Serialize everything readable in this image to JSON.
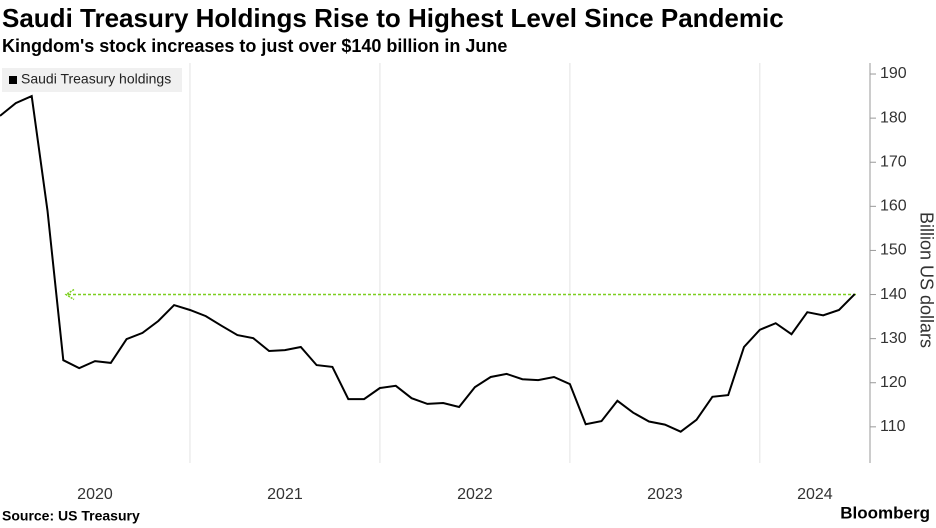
{
  "chart_data": {
    "type": "line",
    "title": "Saudi Treasury Holdings Rise to Highest Level Since Pandemic",
    "subtitle": "Kingdom's stock increases to just over $140 billion in June",
    "source": "Source: US Treasury",
    "brand": "Bloomberg",
    "y_label": "Billion US dollars",
    "categories": [
      "2020",
      null,
      null,
      null,
      null,
      null,
      null,
      null,
      null,
      null,
      null,
      null,
      "2021",
      null,
      null,
      null,
      null,
      null,
      null,
      null,
      null,
      null,
      null,
      null,
      "2022",
      null,
      null,
      null,
      null,
      null,
      null,
      null,
      null,
      null,
      null,
      null,
      "2023",
      null,
      null,
      null,
      null,
      null,
      null,
      null,
      null,
      null,
      null,
      null,
      "2024",
      null,
      null,
      null,
      null,
      null,
      null
    ],
    "series": [
      {
        "name": "Saudi Treasury holdings",
        "color": "#000000",
        "values": [
          180.5,
          183.4,
          185,
          159,
          125.1,
          123.3,
          124.9,
          124.5,
          129.9,
          131.3,
          134,
          137.6,
          136.5,
          135.1,
          132.9,
          130.8,
          130.1,
          127.2,
          127.4,
          128.1,
          124,
          123.6,
          116.3,
          116.3,
          118.8,
          119.3,
          116.5,
          115.2,
          115.4,
          114.5,
          119,
          121.3,
          122,
          120.8,
          120.6,
          121.3,
          119.7,
          110.6,
          111.3,
          115.9,
          113.2,
          111.2,
          110.5,
          108.9,
          111.6,
          116.8,
          117.2,
          128.1,
          132,
          133.5,
          131,
          136,
          135.3,
          136.5,
          140.1
        ]
      }
    ],
    "reference_line": {
      "value": 140,
      "color": "#7ccf1f"
    },
    "ylim": [
      101.8,
      192.5
    ],
    "yticks": [
      110,
      120,
      130,
      140,
      150,
      160,
      170,
      180,
      190
    ],
    "y_axis_side": "right",
    "grid": "x"
  }
}
